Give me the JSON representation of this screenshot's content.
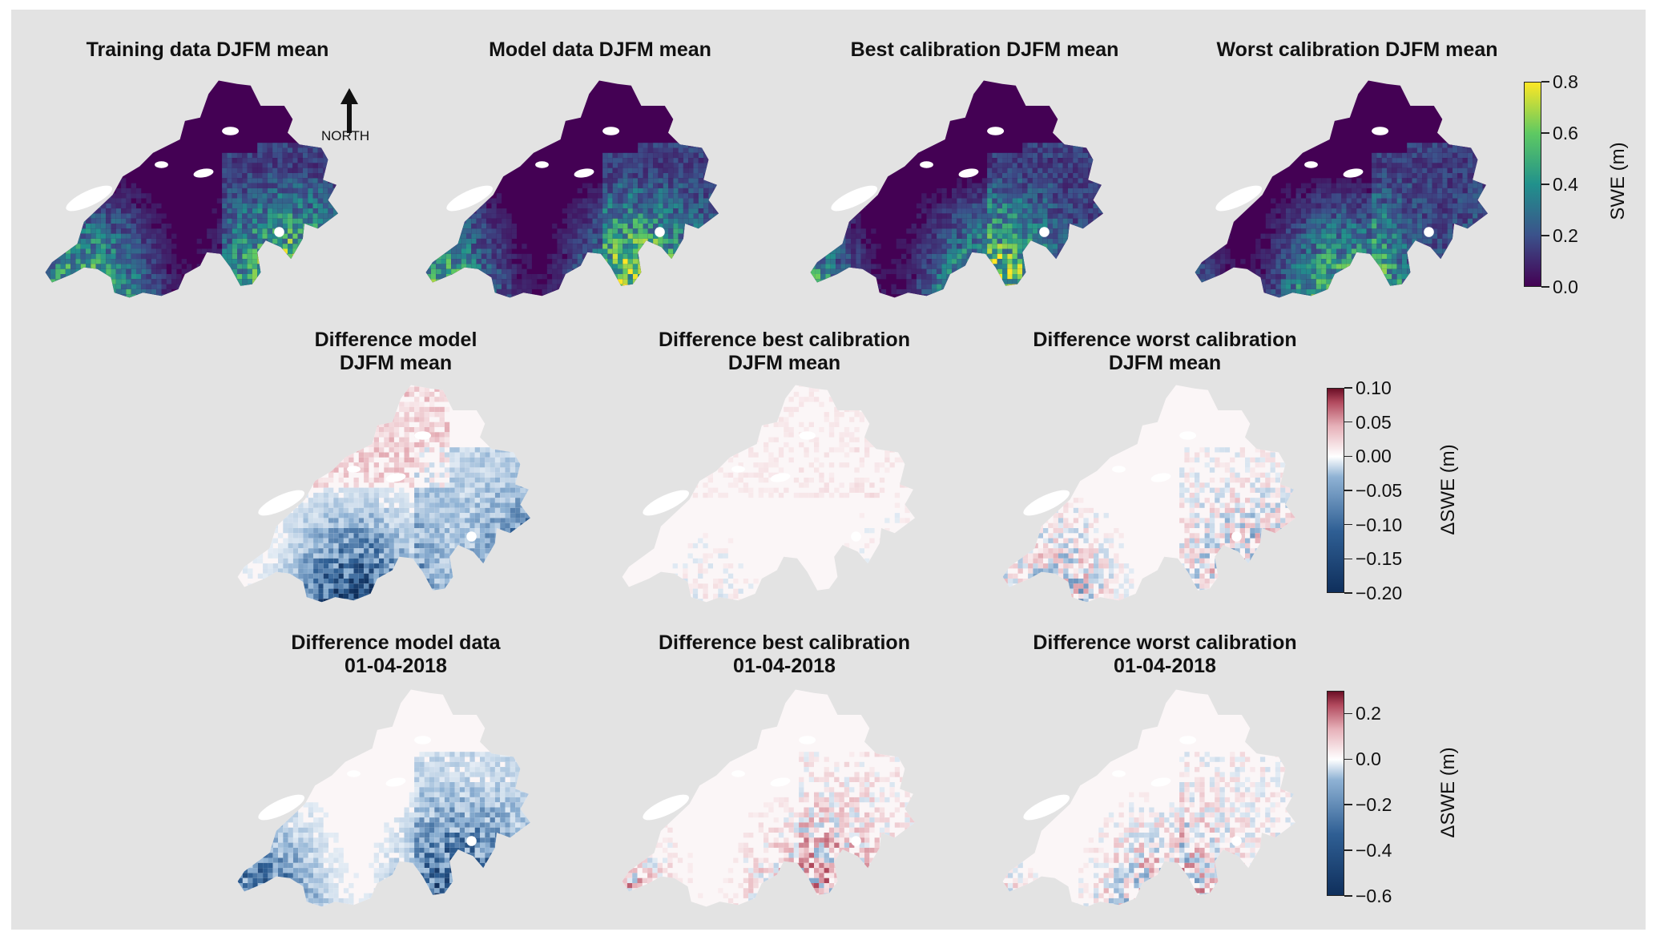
{
  "panels": [
    {
      "title": [
        "Training data DJFM mean"
      ],
      "scheme": "viridis",
      "variant": 0
    },
    {
      "title": [
        "Model data DJFM mean"
      ],
      "scheme": "viridis",
      "variant": 1
    },
    {
      "title": [
        "Best calibration DJFM mean"
      ],
      "scheme": "viridis",
      "variant": 2
    },
    {
      "title": [
        "Worst calibration DJFM mean"
      ],
      "scheme": "viridis",
      "variant": 3
    },
    {
      "title": [
        "Difference model",
        "DJFM mean"
      ],
      "scheme": "diverging",
      "variant": 4
    },
    {
      "title": [
        "Difference best calibration",
        "DJFM mean"
      ],
      "scheme": "diverging",
      "variant": 5
    },
    {
      "title": [
        "Difference worst calibration",
        "DJFM mean"
      ],
      "scheme": "diverging",
      "variant": 6
    },
    {
      "title": [
        "Difference model data",
        "01-04-2018"
      ],
      "scheme": "diverging",
      "variant": 7
    },
    {
      "title": [
        "Difference best calibration",
        "01-04-2018"
      ],
      "scheme": "diverging",
      "variant": 8
    },
    {
      "title": [
        "Difference worst calibration",
        "01-04-2018"
      ],
      "scheme": "diverging",
      "variant": 9
    }
  ],
  "north_arrow": {
    "label": "NORTH"
  },
  "colorbars": [
    {
      "label": "SWE (m)",
      "scheme": "viridis",
      "range": [
        0.0,
        0.8
      ],
      "ticks": [
        0.0,
        0.2,
        0.4,
        0.6,
        0.8
      ],
      "tick_labels": [
        "0.0",
        "0.2",
        "0.4",
        "0.6",
        "0.8"
      ]
    },
    {
      "label": "ΔSWE (m)",
      "scheme": "diverging",
      "range": [
        -0.2,
        0.1
      ],
      "ticks": [
        0.1,
        0.05,
        0.0,
        -0.05,
        -0.1,
        -0.15,
        -0.2
      ],
      "tick_labels": [
        "0.10",
        "0.05",
        "0.00",
        "−0.05",
        "−0.10",
        "−0.15",
        "−0.20"
      ]
    },
    {
      "label": "ΔSWE (m)",
      "scheme": "diverging",
      "range": [
        -0.6,
        0.3
      ],
      "ticks": [
        0.2,
        0.0,
        -0.2,
        -0.4,
        -0.6
      ],
      "tick_labels": [
        "0.2",
        "0.0",
        "−0.2",
        "−0.4",
        "−0.6"
      ]
    }
  ],
  "colors": {
    "viridis": [
      "#440154",
      "#3b528b",
      "#21918c",
      "#5ec962",
      "#fde725"
    ],
    "diverging": [
      "#0f2f5c",
      "#2f5f94",
      "#8fb2d4",
      "#ffffff",
      "#e6b0b8",
      "#b24a5e",
      "#6b0f26"
    ],
    "background": "#e3e3e3"
  }
}
